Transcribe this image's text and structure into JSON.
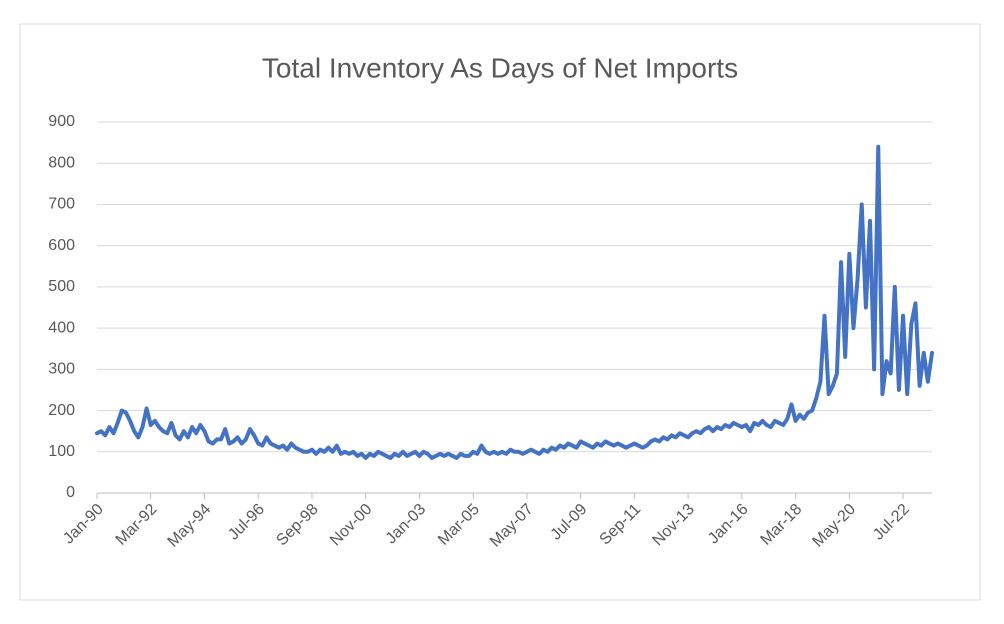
{
  "chart_data": {
    "type": "line",
    "title": "Total Inventory As Days of Net Imports",
    "categories": [
      "Jan-90",
      null,
      null,
      null,
      null,
      null,
      null,
      null,
      null,
      null,
      null,
      null,
      null,
      "Mar-92",
      null,
      null,
      null,
      null,
      null,
      null,
      null,
      null,
      null,
      null,
      null,
      null,
      "May-94",
      null,
      null,
      null,
      null,
      null,
      null,
      null,
      null,
      null,
      null,
      null,
      null,
      "Jul-96",
      null,
      null,
      null,
      null,
      null,
      null,
      null,
      null,
      null,
      null,
      null,
      null,
      "Sep-98",
      null,
      null,
      null,
      null,
      null,
      null,
      null,
      null,
      null,
      null,
      null,
      null,
      "Nov-00",
      null,
      null,
      null,
      null,
      null,
      null,
      null,
      null,
      null,
      null,
      null,
      null,
      "Jan-03",
      null,
      null,
      null,
      null,
      null,
      null,
      null,
      null,
      null,
      null,
      null,
      null,
      "Mar-05",
      null,
      null,
      null,
      null,
      null,
      null,
      null,
      null,
      null,
      null,
      null,
      null,
      "May-07",
      null,
      null,
      null,
      null,
      null,
      null,
      null,
      null,
      null,
      null,
      null,
      null,
      "Jul-09",
      null,
      null,
      null,
      null,
      null,
      null,
      null,
      null,
      null,
      null,
      null,
      null,
      "Sep-11",
      null,
      null,
      null,
      null,
      null,
      null,
      null,
      null,
      null,
      null,
      null,
      null,
      "Nov-13",
      null,
      null,
      null,
      null,
      null,
      null,
      null,
      null,
      null,
      null,
      null,
      null,
      "Jan-16",
      null,
      null,
      null,
      null,
      null,
      null,
      null,
      null,
      null,
      null,
      null,
      null,
      "Mar-18",
      null,
      null,
      null,
      null,
      null,
      null,
      null,
      null,
      null,
      null,
      null,
      null,
      "May-20",
      null,
      null,
      null,
      null,
      null,
      null,
      null,
      null,
      null,
      null,
      null,
      null,
      "Jul-22",
      null,
      null,
      null,
      null,
      null,
      null,
      null
    ],
    "values": [
      145,
      150,
      140,
      160,
      145,
      170,
      200,
      195,
      175,
      150,
      135,
      160,
      205,
      165,
      175,
      160,
      150,
      145,
      170,
      140,
      130,
      150,
      135,
      160,
      145,
      165,
      150,
      125,
      120,
      130,
      130,
      155,
      120,
      125,
      135,
      120,
      130,
      155,
      140,
      120,
      115,
      135,
      120,
      115,
      110,
      115,
      105,
      120,
      110,
      105,
      100,
      100,
      105,
      95,
      105,
      100,
      110,
      100,
      115,
      95,
      100,
      95,
      100,
      90,
      95,
      85,
      95,
      90,
      100,
      95,
      90,
      85,
      95,
      90,
      100,
      90,
      95,
      100,
      90,
      100,
      95,
      85,
      90,
      95,
      90,
      95,
      90,
      85,
      95,
      90,
      90,
      100,
      95,
      115,
      100,
      95,
      100,
      95,
      100,
      95,
      105,
      100,
      100,
      95,
      100,
      105,
      100,
      95,
      105,
      100,
      110,
      105,
      115,
      110,
      120,
      115,
      110,
      125,
      120,
      115,
      110,
      120,
      115,
      125,
      120,
      115,
      120,
      115,
      110,
      115,
      120,
      115,
      110,
      115,
      125,
      130,
      125,
      135,
      130,
      140,
      135,
      145,
      140,
      135,
      145,
      150,
      145,
      155,
      160,
      150,
      160,
      155,
      165,
      160,
      170,
      165,
      160,
      165,
      150,
      170,
      165,
      175,
      165,
      160,
      175,
      170,
      165,
      180,
      215,
      175,
      190,
      180,
      195,
      200,
      230,
      270,
      430,
      240,
      260,
      290,
      560,
      330,
      580,
      400,
      520,
      700,
      450,
      660,
      300,
      840,
      240,
      320,
      290,
      500,
      250,
      430,
      240,
      410,
      460,
      260,
      340,
      270,
      340
    ],
    "color": "#4472c4",
    "ylim": [
      0,
      900
    ],
    "yticks": [
      0,
      100,
      200,
      300,
      400,
      500,
      600,
      700,
      800,
      900
    ],
    "grid": true
  }
}
